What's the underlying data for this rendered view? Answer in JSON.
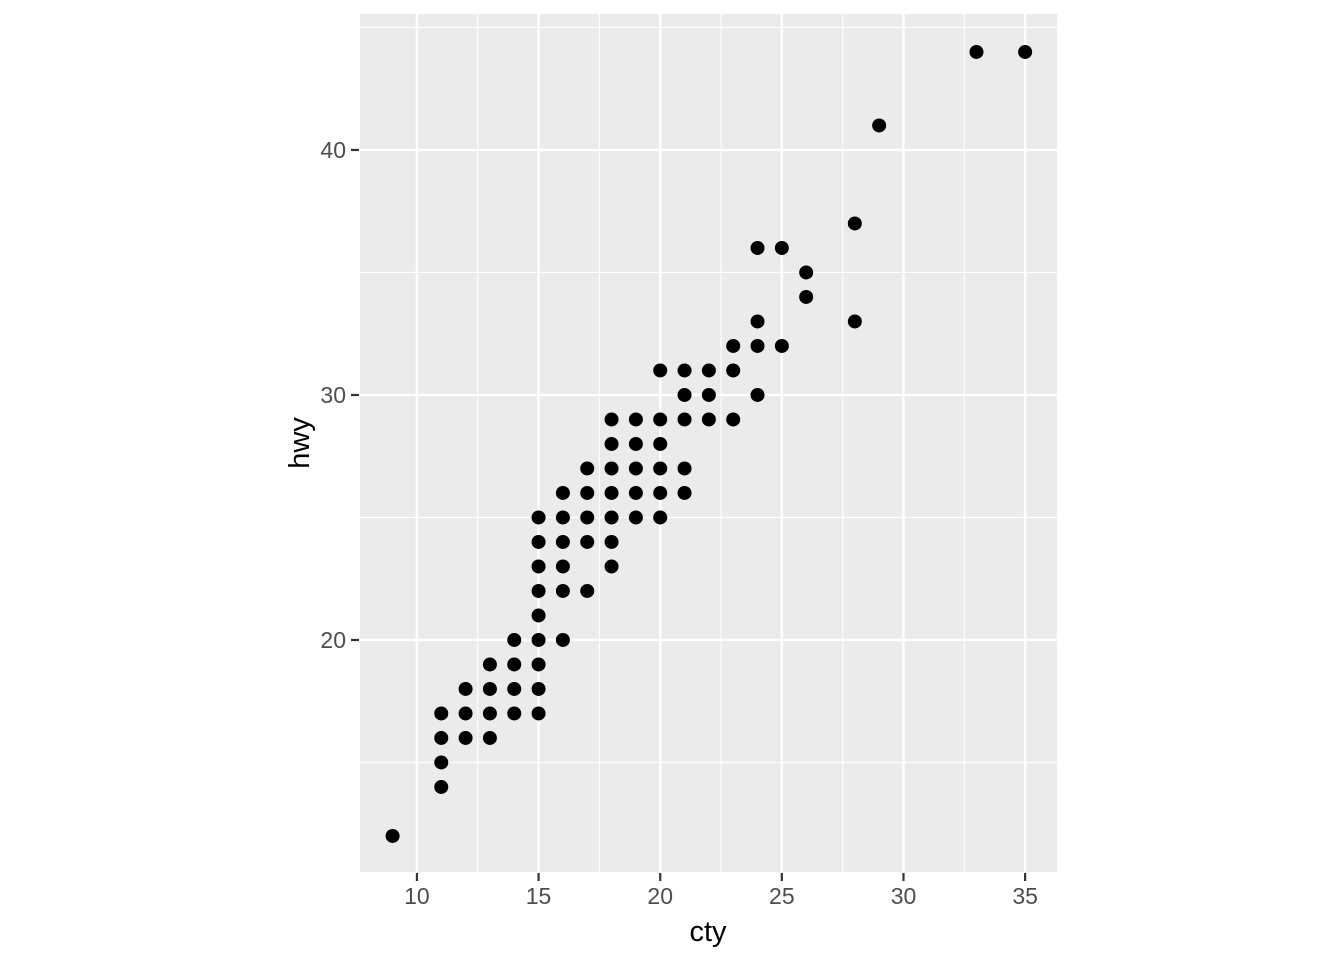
{
  "chart_data": {
    "type": "scatter",
    "title": "",
    "xlabel": "cty",
    "ylabel": "hwy",
    "x_ticks": [
      10,
      15,
      20,
      25,
      30,
      35
    ],
    "x_minor_ticks": [
      12.5,
      17.5,
      22.5,
      27.5,
      32.5
    ],
    "y_ticks": [
      20,
      30,
      40
    ],
    "y_minor_ticks": [
      15,
      25,
      35,
      45
    ],
    "xlim": [
      7.66,
      36.31
    ],
    "ylim": [
      10.53,
      45.55
    ],
    "grid": "on",
    "legend": "none",
    "points": [
      [
        9,
        12
      ],
      [
        11,
        14
      ],
      [
        11,
        15
      ],
      [
        11,
        16
      ],
      [
        11,
        17
      ],
      [
        12,
        16
      ],
      [
        12,
        17
      ],
      [
        12,
        18
      ],
      [
        13,
        16
      ],
      [
        13,
        17
      ],
      [
        13,
        18
      ],
      [
        13,
        19
      ],
      [
        14,
        17
      ],
      [
        14,
        18
      ],
      [
        14,
        19
      ],
      [
        14,
        20
      ],
      [
        15,
        17
      ],
      [
        15,
        18
      ],
      [
        15,
        19
      ],
      [
        15,
        20
      ],
      [
        15,
        21
      ],
      [
        15,
        22
      ],
      [
        15,
        23
      ],
      [
        15,
        24
      ],
      [
        15,
        25
      ],
      [
        16,
        20
      ],
      [
        16,
        22
      ],
      [
        16,
        23
      ],
      [
        16,
        24
      ],
      [
        16,
        25
      ],
      [
        16,
        26
      ],
      [
        17,
        22
      ],
      [
        17,
        24
      ],
      [
        17,
        25
      ],
      [
        17,
        26
      ],
      [
        17,
        27
      ],
      [
        18,
        23
      ],
      [
        18,
        24
      ],
      [
        18,
        25
      ],
      [
        18,
        26
      ],
      [
        18,
        27
      ],
      [
        18,
        28
      ],
      [
        18,
        29
      ],
      [
        19,
        25
      ],
      [
        19,
        26
      ],
      [
        19,
        27
      ],
      [
        19,
        28
      ],
      [
        19,
        29
      ],
      [
        20,
        25
      ],
      [
        20,
        26
      ],
      [
        20,
        27
      ],
      [
        20,
        28
      ],
      [
        20,
        29
      ],
      [
        20,
        31
      ],
      [
        21,
        26
      ],
      [
        21,
        27
      ],
      [
        21,
        29
      ],
      [
        21,
        30
      ],
      [
        21,
        31
      ],
      [
        22,
        29
      ],
      [
        22,
        30
      ],
      [
        22,
        31
      ],
      [
        23,
        29
      ],
      [
        23,
        31
      ],
      [
        23,
        32
      ],
      [
        24,
        30
      ],
      [
        24,
        32
      ],
      [
        24,
        33
      ],
      [
        24,
        36
      ],
      [
        25,
        32
      ],
      [
        25,
        36
      ],
      [
        26,
        34
      ],
      [
        26,
        35
      ],
      [
        28,
        33
      ],
      [
        28,
        37
      ],
      [
        29,
        41
      ],
      [
        33,
        44
      ],
      [
        35,
        44
      ]
    ],
    "style": {
      "panel_bg": "#EBEBEB",
      "grid_color": "#FFFFFF",
      "point_color": "#000000",
      "tick_label_color": "#4D4D4D",
      "tick_mark_color": "#333333",
      "axis_title_color": "#000000",
      "outer_bg": "#FFFFFF"
    }
  }
}
